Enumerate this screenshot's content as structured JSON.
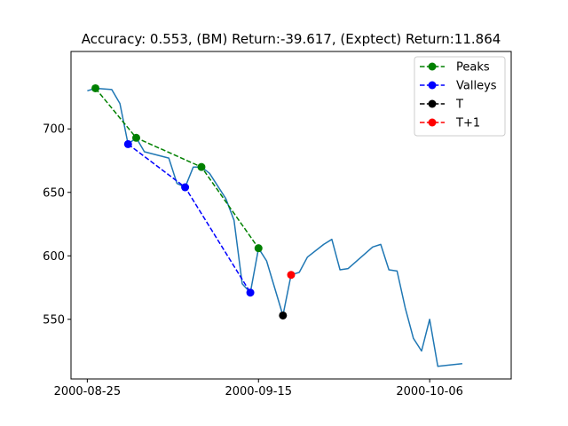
{
  "chart_data": {
    "type": "line",
    "title": "Accuracy: 0.553, (BM) Return:-39.617, (Exptect) Return:11.864",
    "xlabel": "",
    "ylabel": "",
    "x_ticks": [
      "2000-08-25",
      "2000-09-15",
      "2000-10-06"
    ],
    "y_ticks": [
      550,
      600,
      650,
      700
    ],
    "xlim": [
      "2000-08-23",
      "2000-10-16"
    ],
    "ylim": [
      503,
      761
    ],
    "grid": false,
    "legend": {
      "placement": "top-right",
      "entries": [
        "Peaks",
        "Valleys",
        "T",
        "T+1"
      ]
    },
    "series": [
      {
        "style": "solid",
        "color": "#1f77b4",
        "points": [
          [
            "2000-08-25",
            730
          ],
          [
            "2000-08-26",
            732
          ],
          [
            "2000-08-28",
            731
          ],
          [
            "2000-08-29",
            720
          ],
          [
            "2000-08-30",
            688
          ],
          [
            "2000-08-31",
            693
          ],
          [
            "2000-09-01",
            682
          ],
          [
            "2000-09-04",
            677
          ],
          [
            "2000-09-05",
            657
          ],
          [
            "2000-09-06",
            654
          ],
          [
            "2000-09-07",
            670
          ],
          [
            "2000-09-08",
            670
          ],
          [
            "2000-09-09",
            665
          ],
          [
            "2000-09-11",
            645
          ],
          [
            "2000-09-12",
            628
          ],
          [
            "2000-09-13",
            578
          ],
          [
            "2000-09-14",
            571
          ],
          [
            "2000-09-15",
            606
          ],
          [
            "2000-09-16",
            596
          ],
          [
            "2000-09-18",
            553
          ],
          [
            "2000-09-19",
            585
          ],
          [
            "2000-09-20",
            587
          ],
          [
            "2000-09-21",
            599
          ],
          [
            "2000-09-23",
            609
          ],
          [
            "2000-09-24",
            613
          ],
          [
            "2000-09-25",
            589
          ],
          [
            "2000-09-26",
            590
          ],
          [
            "2000-09-29",
            607
          ],
          [
            "2000-09-30",
            609
          ],
          [
            "2000-10-01",
            589
          ],
          [
            "2000-10-02",
            588
          ],
          [
            "2000-10-03",
            559
          ],
          [
            "2000-10-04",
            535
          ],
          [
            "2000-10-05",
            525
          ],
          [
            "2000-10-06",
            550
          ],
          [
            "2000-10-07",
            513
          ],
          [
            "2000-10-10",
            515
          ]
        ]
      },
      {
        "name": "Peaks",
        "style": "dashed",
        "marker": "circle",
        "color": "#008000",
        "points": [
          [
            "2000-08-26",
            732
          ],
          [
            "2000-08-31",
            693
          ],
          [
            "2000-09-08",
            670
          ],
          [
            "2000-09-15",
            606
          ]
        ]
      },
      {
        "name": "Valleys",
        "style": "dashed",
        "marker": "circle",
        "color": "#0000ff",
        "points": [
          [
            "2000-08-30",
            688
          ],
          [
            "2000-09-06",
            654
          ],
          [
            "2000-09-14",
            571
          ]
        ]
      },
      {
        "name": "T",
        "style": "dashed",
        "marker": "circle",
        "color": "#000000",
        "points": [
          [
            "2000-09-18",
            553
          ]
        ]
      },
      {
        "name": "T+1",
        "style": "dashed",
        "marker": "circle",
        "color": "#ff0000",
        "points": [
          [
            "2000-09-19",
            585
          ]
        ]
      }
    ]
  }
}
